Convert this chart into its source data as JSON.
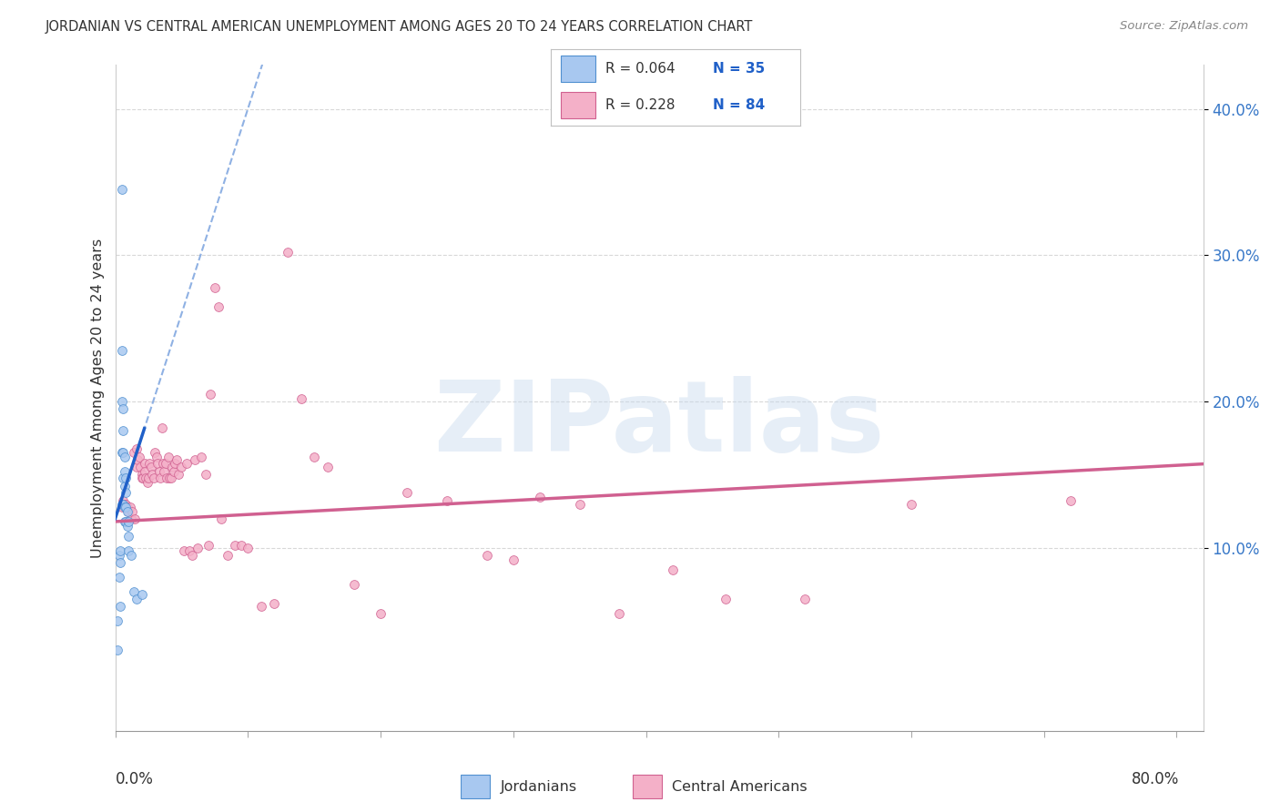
{
  "title": "JORDANIAN VS CENTRAL AMERICAN UNEMPLOYMENT AMONG AGES 20 TO 24 YEARS CORRELATION CHART",
  "source": "Source: ZipAtlas.com",
  "ylabel": "Unemployment Among Ages 20 to 24 years",
  "xlim": [
    0.0,
    0.82
  ],
  "ylim": [
    -0.025,
    0.43
  ],
  "ytick_values": [
    0.1,
    0.2,
    0.3,
    0.4
  ],
  "ytick_labels": [
    "10.0%",
    "20.0%",
    "30.0%",
    "40.0%"
  ],
  "xtick_left_label": "0.0%",
  "xtick_right_label": "80.0%",
  "legend_r1": "0.064",
  "legend_n1": "35",
  "legend_r2": "0.228",
  "legend_n2": "84",
  "jord_color": "#a8c8f0",
  "jord_edge": "#5090d0",
  "ca_color": "#f4b0c8",
  "ca_edge": "#d06090",
  "trend_jord_solid_color": "#2060c8",
  "trend_jord_dash_color": "#6090d8",
  "trend_ca_color": "#d06090",
  "watermark": "ZIPatlas",
  "bg_color": "#ffffff",
  "grid_color": "#d8d8d8",
  "jordanians_x": [
    0.002,
    0.002,
    0.003,
    0.003,
    0.004,
    0.004,
    0.004,
    0.005,
    0.005,
    0.005,
    0.005,
    0.005,
    0.006,
    0.006,
    0.006,
    0.006,
    0.006,
    0.007,
    0.007,
    0.007,
    0.007,
    0.007,
    0.008,
    0.008,
    0.008,
    0.008,
    0.009,
    0.009,
    0.01,
    0.01,
    0.01,
    0.012,
    0.014,
    0.016,
    0.02
  ],
  "jordanians_y": [
    0.05,
    0.03,
    0.095,
    0.08,
    0.098,
    0.09,
    0.06,
    0.345,
    0.235,
    0.2,
    0.165,
    0.13,
    0.195,
    0.18,
    0.165,
    0.148,
    0.13,
    0.162,
    0.152,
    0.142,
    0.128,
    0.118,
    0.148,
    0.138,
    0.128,
    0.118,
    0.125,
    0.115,
    0.118,
    0.108,
    0.098,
    0.095,
    0.07,
    0.065,
    0.068
  ],
  "ca_x": [
    0.005,
    0.006,
    0.007,
    0.008,
    0.009,
    0.01,
    0.011,
    0.012,
    0.013,
    0.014,
    0.015,
    0.016,
    0.016,
    0.017,
    0.018,
    0.019,
    0.02,
    0.02,
    0.021,
    0.022,
    0.022,
    0.023,
    0.024,
    0.025,
    0.026,
    0.027,
    0.028,
    0.029,
    0.03,
    0.031,
    0.032,
    0.033,
    0.034,
    0.035,
    0.036,
    0.037,
    0.038,
    0.039,
    0.04,
    0.041,
    0.042,
    0.043,
    0.044,
    0.045,
    0.046,
    0.048,
    0.05,
    0.052,
    0.054,
    0.056,
    0.058,
    0.06,
    0.062,
    0.065,
    0.068,
    0.07,
    0.072,
    0.075,
    0.078,
    0.08,
    0.085,
    0.09,
    0.095,
    0.1,
    0.11,
    0.12,
    0.13,
    0.14,
    0.15,
    0.16,
    0.18,
    0.2,
    0.22,
    0.25,
    0.28,
    0.3,
    0.32,
    0.35,
    0.38,
    0.42,
    0.46,
    0.52,
    0.6,
    0.72
  ],
  "ca_y": [
    0.128,
    0.132,
    0.13,
    0.13,
    0.128,
    0.125,
    0.128,
    0.12,
    0.125,
    0.165,
    0.12,
    0.168,
    0.155,
    0.16,
    0.162,
    0.155,
    0.15,
    0.148,
    0.148,
    0.158,
    0.152,
    0.148,
    0.145,
    0.148,
    0.158,
    0.155,
    0.15,
    0.148,
    0.165,
    0.162,
    0.158,
    0.152,
    0.148,
    0.182,
    0.158,
    0.152,
    0.158,
    0.148,
    0.162,
    0.148,
    0.148,
    0.155,
    0.152,
    0.158,
    0.16,
    0.15,
    0.155,
    0.098,
    0.158,
    0.098,
    0.095,
    0.16,
    0.1,
    0.162,
    0.15,
    0.102,
    0.205,
    0.278,
    0.265,
    0.12,
    0.095,
    0.102,
    0.102,
    0.1,
    0.06,
    0.062,
    0.302,
    0.202,
    0.162,
    0.155,
    0.075,
    0.055,
    0.138,
    0.132,
    0.095,
    0.092,
    0.135,
    0.13,
    0.055,
    0.085,
    0.065,
    0.065,
    0.13,
    0.132
  ],
  "scatter_size": 50,
  "trend_jord_slope": 2.8,
  "trend_jord_intercept": 0.12,
  "trend_ca_slope": 0.048,
  "trend_ca_intercept": 0.118
}
